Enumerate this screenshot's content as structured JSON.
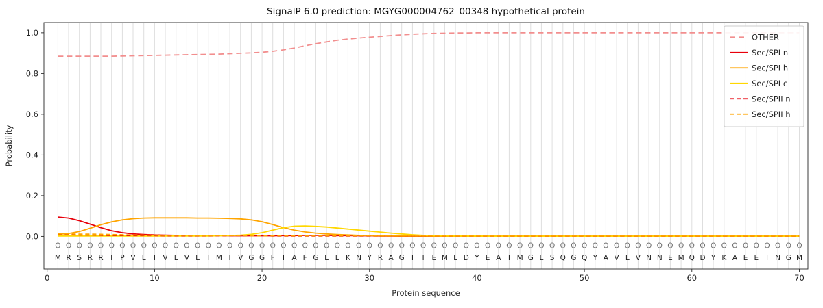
{
  "chart_data": {
    "type": "line",
    "title": "SignalP 6.0 prediction: MGYG000004762_00348 hypothetical protein",
    "xlabel": "Protein sequence",
    "ylabel": "Probability",
    "xlim": [
      -0.3,
      70.8
    ],
    "ylim": [
      -0.16,
      1.05
    ],
    "xticks": [
      0,
      10,
      20,
      30,
      40,
      50,
      60,
      70
    ],
    "yticks": [
      0,
      0.2,
      0.4,
      0.6,
      0.8,
      1.0
    ],
    "grid": "vertical gridline at every residue position, light gray",
    "legend_position": "upper right",
    "sequence": "MRSRRIPVLIVLVLIMIVGGFTAFGLLKNYRAGTTEMLDYEATMGLSQGQYAVLVNNEMQDYKAEEINGM",
    "region_labels": "OOOOOOOOOOOOOOOOOOOOOOOOOOOOOOOOOOOOOOOOOOOOOOOOOOOOOOOOOOOOOOOOOOOOOO",
    "series": [
      {
        "name": "OTHER",
        "color": "#f28e8e",
        "dashed": true,
        "values": [
          0.885,
          0.885,
          0.885,
          0.885,
          0.885,
          0.885,
          0.886,
          0.887,
          0.888,
          0.889,
          0.89,
          0.891,
          0.892,
          0.893,
          0.894,
          0.895,
          0.897,
          0.899,
          0.901,
          0.904,
          0.909,
          0.916,
          0.925,
          0.936,
          0.946,
          0.955,
          0.963,
          0.969,
          0.974,
          0.978,
          0.982,
          0.986,
          0.99,
          0.993,
          0.995,
          0.997,
          0.998,
          0.999,
          0.999,
          1.0,
          1.0,
          1.0,
          1.0,
          1.0,
          1.0,
          1.0,
          1.0,
          1.0,
          1.0,
          1.0,
          1.0,
          1.0,
          1.0,
          1.0,
          1.0,
          1.0,
          1.0,
          1.0,
          1.0,
          1.0,
          1.0,
          1.0,
          1.0,
          1.0,
          1.0,
          1.0,
          1.0,
          1.0,
          1.0,
          1.0
        ]
      },
      {
        "name": "Sec/SPI n",
        "color": "#e8000b",
        "dashed": false,
        "values": [
          0.095,
          0.09,
          0.077,
          0.06,
          0.043,
          0.028,
          0.018,
          0.012,
          0.009,
          0.007,
          0.006,
          0.005,
          0.005,
          0.004,
          0.004,
          0.004,
          0.003,
          0.003,
          0.003,
          0.003,
          0.003,
          0.004,
          0.004,
          0.005,
          0.005,
          0.005,
          0.004,
          0.004,
          0.003,
          0.003,
          0.002,
          0.002,
          0.001,
          0.001,
          0.001,
          0.001,
          0.001,
          0.001,
          0.001,
          0.001,
          0.001,
          0.001,
          0.001,
          0.001,
          0.001,
          0.001,
          0.001,
          0.001,
          0.001,
          0.001,
          0.001,
          0.001,
          0.001,
          0.001,
          0.001,
          0.001,
          0.001,
          0.001,
          0.001,
          0.001,
          0.001,
          0.001,
          0.001,
          0.001,
          0.001,
          0.001,
          0.001,
          0.001,
          0.001,
          0.001
        ]
      },
      {
        "name": "Sec/SPI h",
        "color": "#ffa500",
        "dashed": false,
        "values": [
          0.01,
          0.014,
          0.024,
          0.04,
          0.057,
          0.071,
          0.081,
          0.087,
          0.09,
          0.091,
          0.091,
          0.091,
          0.091,
          0.09,
          0.09,
          0.089,
          0.088,
          0.086,
          0.081,
          0.072,
          0.058,
          0.043,
          0.031,
          0.022,
          0.016,
          0.012,
          0.009,
          0.007,
          0.005,
          0.004,
          0.003,
          0.003,
          0.002,
          0.002,
          0.002,
          0.001,
          0.001,
          0.001,
          0.001,
          0.001,
          0.001,
          0.001,
          0.001,
          0.001,
          0.001,
          0.001,
          0.001,
          0.001,
          0.001,
          0.001,
          0.001,
          0.001,
          0.001,
          0.001,
          0.001,
          0.001,
          0.001,
          0.001,
          0.001,
          0.001,
          0.001,
          0.001,
          0.001,
          0.001,
          0.001,
          0.001,
          0.001,
          0.001,
          0.001,
          0.001
        ]
      },
      {
        "name": "Sec/SPI c",
        "color": "#ffd700",
        "dashed": false,
        "values": [
          0.002,
          0.002,
          0.002,
          0.002,
          0.002,
          0.002,
          0.002,
          0.002,
          0.002,
          0.002,
          0.002,
          0.002,
          0.002,
          0.002,
          0.002,
          0.003,
          0.004,
          0.006,
          0.01,
          0.018,
          0.031,
          0.043,
          0.05,
          0.051,
          0.049,
          0.046,
          0.041,
          0.036,
          0.031,
          0.026,
          0.021,
          0.016,
          0.012,
          0.008,
          0.005,
          0.004,
          0.003,
          0.002,
          0.002,
          0.002,
          0.001,
          0.001,
          0.001,
          0.001,
          0.001,
          0.001,
          0.001,
          0.001,
          0.001,
          0.001,
          0.001,
          0.001,
          0.001,
          0.001,
          0.001,
          0.001,
          0.001,
          0.001,
          0.001,
          0.001,
          0.001,
          0.001,
          0.001,
          0.001,
          0.001,
          0.001,
          0.001,
          0.001,
          0.001,
          0.001
        ]
      },
      {
        "name": "Sec/SPII n",
        "color": "#e8000b",
        "dashed": true,
        "values": [
          0.008,
          0.008,
          0.007,
          0.007,
          0.006,
          0.005,
          0.005,
          0.004,
          0.004,
          0.004,
          0.003,
          0.003,
          0.003,
          0.003,
          0.003,
          0.003,
          0.003,
          0.003,
          0.003,
          0.003,
          0.002,
          0.002,
          0.002,
          0.002,
          0.002,
          0.002,
          0.002,
          0.002,
          0.002,
          0.002,
          0.002,
          0.002,
          0.002,
          0.002,
          0.002,
          0.002,
          0.002,
          0.002,
          0.002,
          0.002,
          0.002,
          0.002,
          0.002,
          0.002,
          0.002,
          0.002,
          0.002,
          0.002,
          0.002,
          0.002,
          0.002,
          0.002,
          0.002,
          0.002,
          0.002,
          0.002,
          0.002,
          0.002,
          0.002,
          0.002,
          0.002,
          0.002,
          0.002,
          0.002,
          0.002,
          0.002,
          0.002,
          0.002,
          0.002,
          0.002
        ]
      },
      {
        "name": "Sec/SPII h",
        "color": "#ffa500",
        "dashed": true,
        "values": [
          0.012,
          0.012,
          0.011,
          0.011,
          0.01,
          0.009,
          0.008,
          0.007,
          0.006,
          0.006,
          0.005,
          0.005,
          0.005,
          0.004,
          0.004,
          0.004,
          0.004,
          0.004,
          0.003,
          0.003,
          0.003,
          0.003,
          0.003,
          0.003,
          0.003,
          0.003,
          0.003,
          0.003,
          0.003,
          0.003,
          0.002,
          0.002,
          0.002,
          0.002,
          0.002,
          0.002,
          0.002,
          0.002,
          0.002,
          0.002,
          0.002,
          0.002,
          0.002,
          0.002,
          0.002,
          0.002,
          0.002,
          0.002,
          0.002,
          0.002,
          0.002,
          0.002,
          0.002,
          0.002,
          0.002,
          0.002,
          0.002,
          0.002,
          0.002,
          0.002,
          0.002,
          0.002,
          0.002,
          0.002,
          0.002,
          0.002,
          0.002,
          0.002,
          0.002,
          0.002
        ]
      }
    ]
  }
}
